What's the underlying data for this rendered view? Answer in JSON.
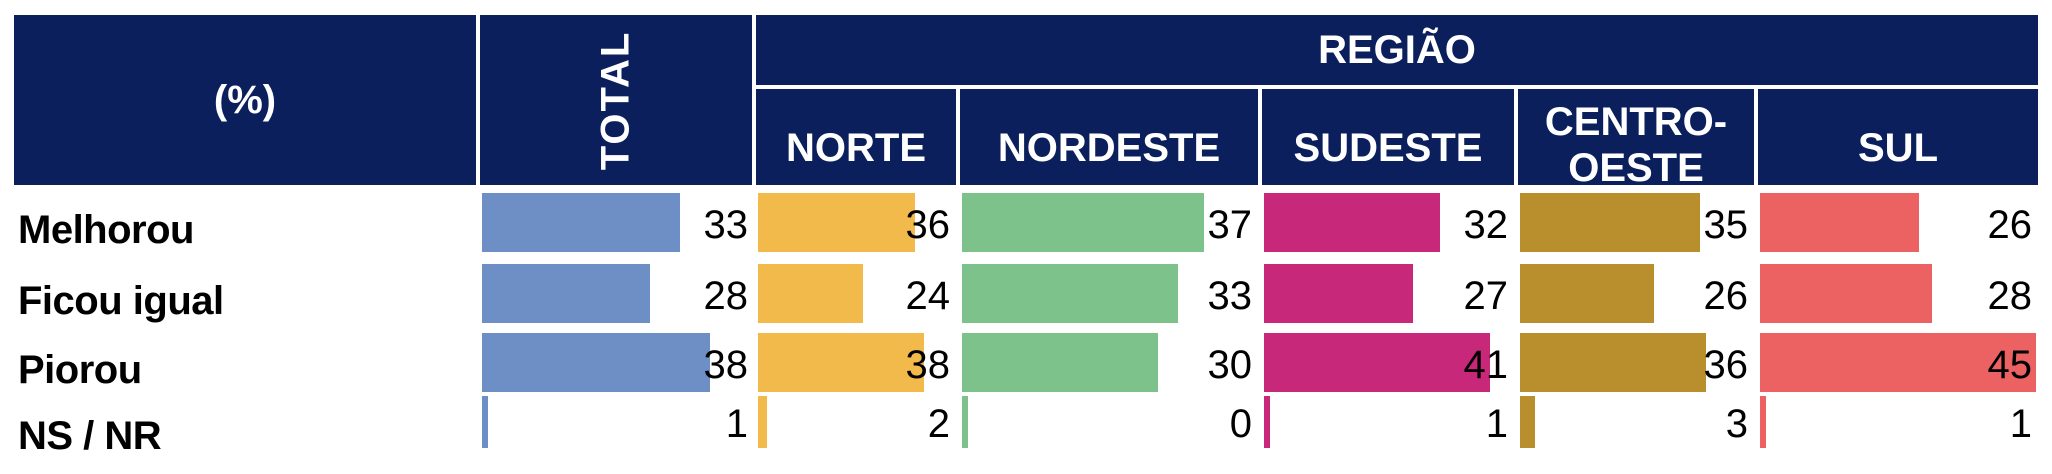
{
  "header": {
    "pct_label": "(%)",
    "total_label": "TOTAL",
    "group_label": "REGIÃO"
  },
  "chart_data": {
    "type": "bar",
    "categories": [
      "Melhorou",
      "Ficou igual",
      "Piorou",
      "NS / NR"
    ],
    "series": [
      {
        "name": "TOTAL",
        "values": [
          33,
          28,
          38,
          1
        ],
        "color": "#6d8fc6"
      },
      {
        "name": "NORTE",
        "values": [
          36,
          24,
          38,
          2
        ],
        "color": "#f2b94b"
      },
      {
        "name": "NORDESTE",
        "values": [
          37,
          33,
          30,
          0
        ],
        "color": "#7dc28b"
      },
      {
        "name": "SUDESTE",
        "values": [
          32,
          27,
          41,
          1
        ],
        "color": "#c7287a"
      },
      {
        "name": "CENTRO-OESTE",
        "values": [
          35,
          26,
          36,
          3
        ],
        "color": "#b88f2c"
      },
      {
        "name": "SUL",
        "values": [
          26,
          28,
          45,
          1
        ],
        "color": "#ec6161"
      }
    ],
    "ylim": [
      0,
      45
    ]
  }
}
